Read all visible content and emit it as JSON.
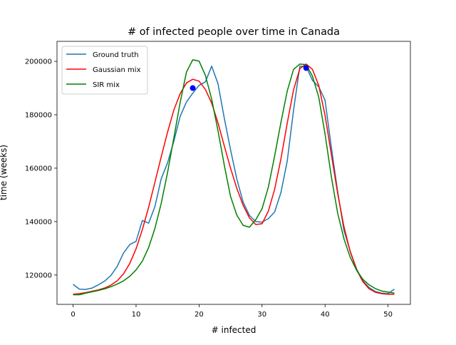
{
  "chart_data": {
    "type": "line",
    "title": "# of infected people over time in Canada",
    "xlabel": "# infected",
    "ylabel": "time (weeks)",
    "xlim": [
      -2.55,
      53.55
    ],
    "ylim": [
      109000,
      207500
    ],
    "xticks": [
      0,
      10,
      20,
      30,
      40,
      50
    ],
    "yticks": [
      120000,
      140000,
      160000,
      180000,
      200000
    ],
    "legend": "top-left",
    "grid": false,
    "series": [
      {
        "name": "Ground truth",
        "color": "#1f77b4",
        "x": [
          0,
          1,
          2,
          3,
          4,
          5,
          6,
          7,
          8,
          9,
          10,
          11,
          12,
          13,
          14,
          15,
          16,
          17,
          18,
          19,
          20,
          21,
          22,
          23,
          24,
          25,
          26,
          27,
          28,
          29,
          30,
          31,
          32,
          33,
          34,
          35,
          36,
          37,
          38,
          39,
          40,
          41,
          42,
          43,
          44,
          45,
          46,
          47,
          48,
          49,
          50,
          51
        ],
        "values": [
          116500,
          114700,
          114600,
          115100,
          116300,
          117700,
          119800,
          123200,
          128200,
          131400,
          132600,
          140400,
          139400,
          145700,
          156100,
          162000,
          170100,
          179400,
          184800,
          188100,
          191000,
          192300,
          198200,
          191700,
          178800,
          166900,
          155900,
          147300,
          142300,
          140000,
          139800,
          141100,
          143600,
          150900,
          162700,
          181700,
          198200,
          198000,
          192900,
          190500,
          185500,
          167800,
          151300,
          136700,
          128900,
          122300,
          117800,
          115300,
          113800,
          113200,
          113000,
          114700
        ]
      },
      {
        "name": "Gaussian mix",
        "color": "#ff0000",
        "x": [
          0,
          1,
          2,
          3,
          4,
          5,
          6,
          7,
          8,
          9,
          10,
          11,
          12,
          13,
          14,
          15,
          16,
          17,
          18,
          19,
          20,
          21,
          22,
          23,
          24,
          25,
          26,
          27,
          28,
          29,
          30,
          31,
          32,
          33,
          34,
          35,
          36,
          37,
          38,
          39,
          40,
          41,
          42,
          43,
          44,
          45,
          46,
          47,
          48,
          49,
          50,
          51
        ],
        "values": [
          112800,
          113000,
          113400,
          113900,
          114400,
          115100,
          116200,
          117800,
          120400,
          124300,
          129800,
          137000,
          145400,
          154800,
          164300,
          173500,
          181800,
          187900,
          191900,
          193300,
          192600,
          189500,
          184400,
          177000,
          168400,
          160000,
          152400,
          146100,
          141400,
          138900,
          139200,
          143900,
          152100,
          163500,
          176900,
          189300,
          197300,
          199000,
          197000,
          191000,
          179800,
          165200,
          150600,
          138100,
          128700,
          122000,
          117500,
          114800,
          113500,
          113000,
          112800,
          112800
        ]
      },
      {
        "name": "SIR mix",
        "color": "#008000",
        "x": [
          0,
          1,
          2,
          3,
          4,
          5,
          6,
          7,
          8,
          9,
          10,
          11,
          12,
          13,
          14,
          15,
          16,
          17,
          18,
          19,
          20,
          21,
          22,
          23,
          24,
          25,
          26,
          27,
          28,
          29,
          30,
          31,
          32,
          33,
          34,
          35,
          36,
          37,
          38,
          39,
          40,
          41,
          42,
          43,
          44,
          45,
          46,
          47,
          48,
          49,
          50,
          51
        ],
        "values": [
          112600,
          112600,
          113200,
          113700,
          114200,
          114800,
          115600,
          116600,
          117800,
          119500,
          121900,
          125200,
          130300,
          137500,
          146900,
          158400,
          171400,
          184600,
          196000,
          200600,
          200100,
          194800,
          185900,
          174100,
          161200,
          149400,
          142400,
          138600,
          137900,
          140700,
          144800,
          152900,
          164600,
          177200,
          188900,
          197000,
          199000,
          198800,
          194500,
          186600,
          172800,
          156800,
          143200,
          133600,
          126600,
          121800,
          118400,
          116300,
          114900,
          114000,
          113600,
          113200
        ]
      }
    ],
    "highlight_points": [
      {
        "x": 19,
        "y": 190000,
        "color": "#0000ff"
      },
      {
        "x": 37,
        "y": 197500,
        "color": "#0000ff"
      }
    ]
  }
}
